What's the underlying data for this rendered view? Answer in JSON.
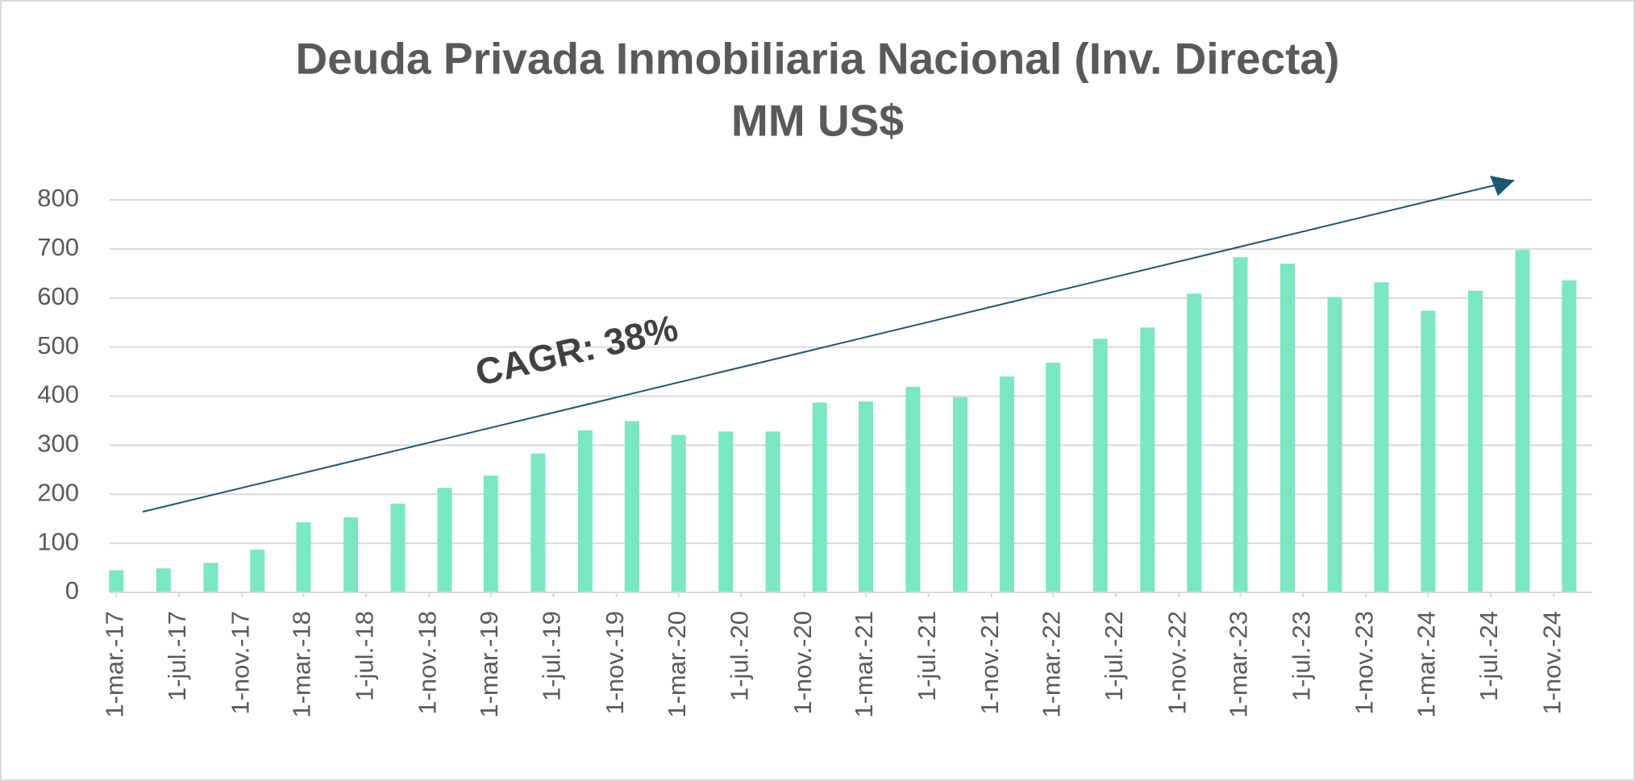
{
  "chart_data": {
    "type": "bar",
    "title": "Deuda Privada Inmobiliaria Nacional (Inv. Directa)",
    "subtitle": "MM US$",
    "annotation": "CAGR: 38%",
    "color": "#7ae6c3",
    "x": [
      "2017-03-01",
      "2017-06-01",
      "2017-09-01",
      "2017-12-01",
      "2018-03-01",
      "2018-06-01",
      "2018-09-01",
      "2018-12-01",
      "2019-03-01",
      "2019-06-01",
      "2019-09-01",
      "2019-12-01",
      "2020-03-01",
      "2020-06-01",
      "2020-09-01",
      "2020-12-01",
      "2021-03-01",
      "2021-06-01",
      "2021-09-01",
      "2021-12-01",
      "2022-03-01",
      "2022-06-01",
      "2022-09-01",
      "2022-12-01",
      "2023-03-01",
      "2023-06-01",
      "2023-09-01",
      "2023-12-01",
      "2024-03-01",
      "2024-06-01",
      "2024-09-01",
      "2024-12-01"
    ],
    "values": [
      45,
      49,
      60,
      87,
      143,
      153,
      181,
      213,
      238,
      283,
      330,
      349,
      321,
      328,
      328,
      387,
      389,
      419,
      398,
      440,
      468,
      517,
      540,
      609,
      683,
      670,
      602,
      632,
      574,
      615,
      698,
      636
    ],
    "xlim": [
      "2017-02-16",
      "2025-01-15"
    ],
    "xticks": [
      {
        "value": "2017-03-01",
        "label": "1-mar.-17"
      },
      {
        "value": "2017-07-01",
        "label": "1-jul.-17"
      },
      {
        "value": "2017-11-01",
        "label": "1-nov.-17"
      },
      {
        "value": "2018-03-01",
        "label": "1-mar.-18"
      },
      {
        "value": "2018-07-01",
        "label": "1-jul.-18"
      },
      {
        "value": "2018-11-01",
        "label": "1-nov.-18"
      },
      {
        "value": "2019-03-01",
        "label": "1-mar.-19"
      },
      {
        "value": "2019-07-01",
        "label": "1-jul.-19"
      },
      {
        "value": "2019-11-01",
        "label": "1-nov.-19"
      },
      {
        "value": "2020-03-01",
        "label": "1-mar.-20"
      },
      {
        "value": "2020-07-01",
        "label": "1-jul.-20"
      },
      {
        "value": "2020-11-01",
        "label": "1-nov.-20"
      },
      {
        "value": "2021-03-01",
        "label": "1-mar.-21"
      },
      {
        "value": "2021-07-01",
        "label": "1-jul.-21"
      },
      {
        "value": "2021-11-01",
        "label": "1-nov.-21"
      },
      {
        "value": "2022-03-01",
        "label": "1-mar.-22"
      },
      {
        "value": "2022-07-01",
        "label": "1-jul.-22"
      },
      {
        "value": "2022-11-01",
        "label": "1-nov.-22"
      },
      {
        "value": "2023-03-01",
        "label": "1-mar.-23"
      },
      {
        "value": "2023-07-01",
        "label": "1-jul.-23"
      },
      {
        "value": "2023-11-01",
        "label": "1-nov.-23"
      },
      {
        "value": "2024-03-01",
        "label": "1-mar.-24"
      },
      {
        "value": "2024-07-01",
        "label": "1-jul.-24"
      },
      {
        "value": "2024-11-01",
        "label": "1-nov.-24"
      }
    ],
    "ylim": [
      0,
      800
    ],
    "yticks": [
      0,
      100,
      200,
      300,
      400,
      500,
      600,
      700,
      800
    ],
    "grid": true
  }
}
